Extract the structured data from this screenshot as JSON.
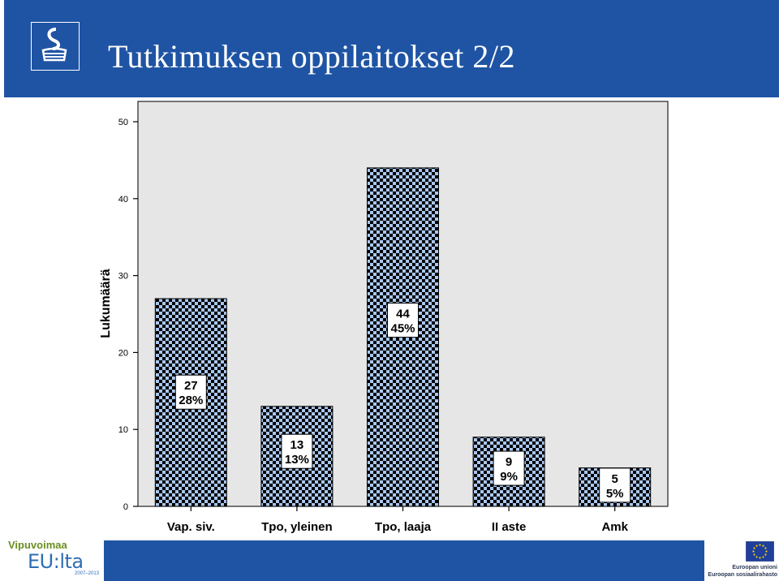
{
  "slide": {
    "title": "Tutkimuksen oppilaitokset 2/2"
  },
  "colors": {
    "header_blue": "#1f54a4",
    "bar_light": "#a9c7ef",
    "bar_dark": "#000000",
    "plot_bg": "#e6e6e6"
  },
  "chart_data": {
    "type": "bar",
    "title": "",
    "xlabel": "",
    "ylabel": "Lukumäärä",
    "ylim": [
      0,
      50
    ],
    "yticks": [
      0,
      10,
      20,
      30,
      40,
      50
    ],
    "categories": [
      "Vap. siv.",
      "Tpo, yleinen",
      "Tpo, laaja",
      "II aste",
      "Amk"
    ],
    "values": [
      27,
      13,
      44,
      9,
      5
    ],
    "percent_labels": [
      "28%",
      "13%",
      "45%",
      "9%",
      "5%"
    ],
    "grid": false,
    "legend": "none"
  },
  "footer": {
    "vipuvoimaa": "Vipuvoimaa",
    "eu_lta": "EU:lta",
    "years": "2007–2013",
    "eu_line1": "Euroopan unioni",
    "eu_line2": "Euroopan sosiaalirahasto"
  }
}
